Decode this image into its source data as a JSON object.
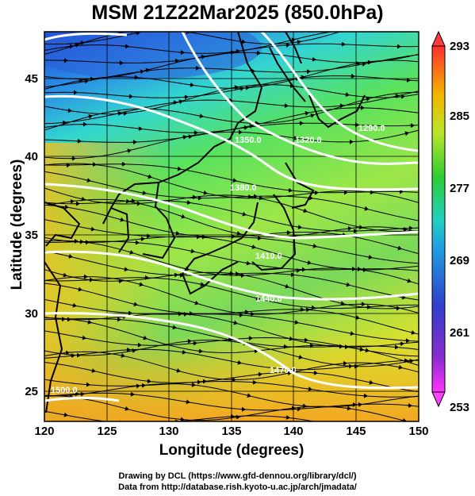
{
  "title": "MSM 21Z22Mar2025 (850.0hPa)",
  "xlabel": "Longitude (degrees)",
  "ylabel": "Latitude  (degrees)",
  "x_ticks": [
    "120",
    "125",
    "130",
    "135",
    "140",
    "145",
    "150"
  ],
  "y_ticks": [
    "25",
    "30",
    "35",
    "40",
    "45"
  ],
  "colorbar_ticks": [
    "293",
    "285",
    "277",
    "269",
    "261",
    "253"
  ],
  "contour_labels": [
    "1290.0",
    "1320.0",
    "1350.0",
    "1410.0",
    "1470.0",
    "1440.0",
    "1380.0",
    "1500.0"
  ],
  "credit_line1": "Drawing by DCL (https://www.gfd-dennou.org/library/dcl/)",
  "credit_line2": "Data from http://database.rish.kyoto-u.ac.jp/arch/jmadata/",
  "map": {
    "type": "temperature field with streamlines and geopotential height contours",
    "lon_range": [
      120,
      150
    ],
    "lat_range": [
      22.5,
      47.5
    ],
    "colorbar_range": [
      253,
      293
    ],
    "colorbar_colors": [
      "#ff33ff",
      "#3333cc",
      "#22cccc",
      "#22cc33",
      "#ccee22",
      "#f5a300",
      "#ff4040"
    ]
  }
}
